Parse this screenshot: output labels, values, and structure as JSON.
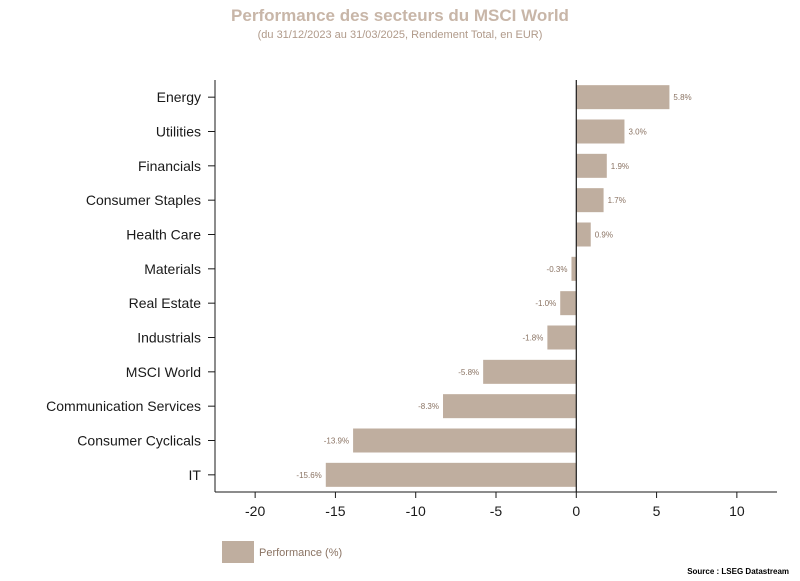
{
  "chart_data": {
    "type": "bar",
    "orientation": "horizontal",
    "title": "Performance des secteurs du MSCI World",
    "subtitle": "(du 31/12/2023 au 31/03/2025, Rendement Total, en EUR)",
    "categories": [
      "Energy",
      "Utilities",
      "Financials",
      "Consumer Staples",
      "Health Care",
      "Materials",
      "Real Estate",
      "Industrials",
      "MSCI World",
      "Communication Services",
      "Consumer Cyclicals",
      "IT"
    ],
    "series": [
      {
        "name": "Performance (%)",
        "values": [
          5.8,
          3.0,
          1.9,
          1.7,
          0.9,
          -0.3,
          -1.0,
          -1.8,
          -5.8,
          -8.3,
          -13.9,
          -15.6
        ],
        "labels": [
          "5.8%",
          "3.0%",
          "1.9%",
          "1.7%",
          "0.9%",
          "-0.3%",
          "-1.0%",
          "-1.8%",
          "-5.8%",
          "-8.3%",
          "-13.9%",
          "-15.6%"
        ]
      }
    ],
    "xlim": [
      -22.5,
      12.5
    ],
    "xticks": [
      -20,
      -15,
      -10,
      -5,
      0,
      5,
      10
    ],
    "xtick_labels": [
      "-20",
      "-15",
      "-10",
      "-5",
      "0",
      "5",
      "10"
    ],
    "grid": false,
    "legend": "bottom-left",
    "source": "Source : LSEG Datastream",
    "colors": {
      "bar": "#bfae9f",
      "title": "#c8b6a8",
      "axis": "#1a1a1a"
    }
  }
}
